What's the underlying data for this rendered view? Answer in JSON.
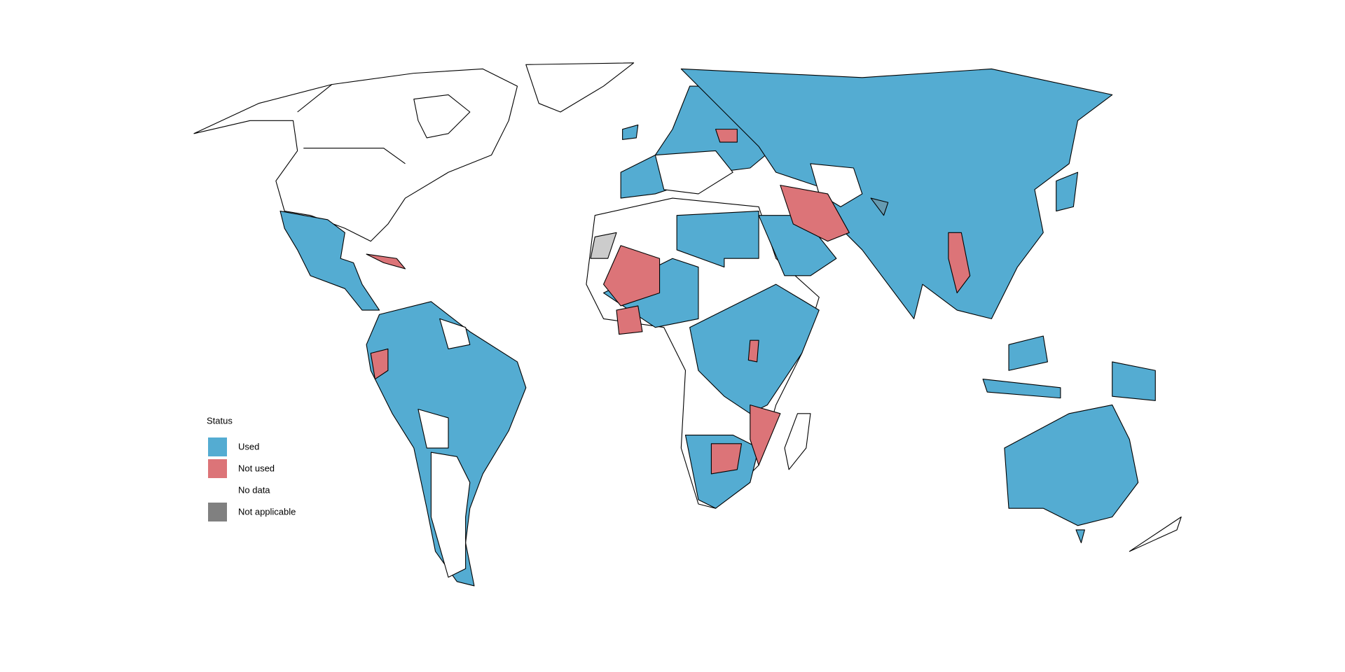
{
  "legend": {
    "title": "Status",
    "items": [
      {
        "label": "Used",
        "color": "#54acd2"
      },
      {
        "label": "Not used",
        "color": "#dc7478"
      },
      {
        "label": "No data",
        "color": "#ffffff"
      },
      {
        "label": "Not applicable",
        "color": "#808080"
      }
    ]
  }
}
